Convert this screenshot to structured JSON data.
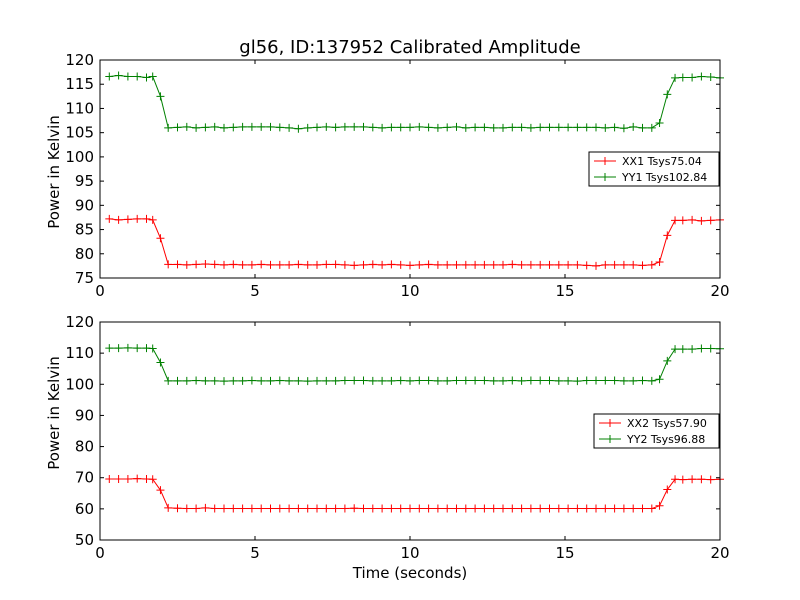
{
  "chart_data": [
    {
      "type": "line",
      "title": "gl56, ID:137952 Calibrated Amplitude",
      "xlabel": "",
      "ylabel": "Power in Kelvin",
      "xlim": [
        0,
        20
      ],
      "ylim": [
        75,
        120
      ],
      "xticks": [
        "0",
        "5",
        "10",
        "15",
        "20"
      ],
      "yticks": [
        "75",
        "80",
        "85",
        "90",
        "95",
        "100",
        "105",
        "110",
        "115",
        "120"
      ],
      "legend_placement": "right",
      "x": [
        0.3,
        0.6,
        0.9,
        1.2,
        1.5,
        1.7,
        1.95,
        2.2,
        2.5,
        2.8,
        3.1,
        3.4,
        3.7,
        4.0,
        4.3,
        4.6,
        4.9,
        5.2,
        5.5,
        5.8,
        6.1,
        6.4,
        6.7,
        7.0,
        7.3,
        7.6,
        7.9,
        8.2,
        8.5,
        8.8,
        9.1,
        9.4,
        9.7,
        10.0,
        10.3,
        10.6,
        10.9,
        11.2,
        11.5,
        11.8,
        12.1,
        12.4,
        12.7,
        13.0,
        13.3,
        13.6,
        13.9,
        14.2,
        14.5,
        14.8,
        15.1,
        15.4,
        15.7,
        16.0,
        16.3,
        16.6,
        16.9,
        17.2,
        17.5,
        17.8,
        18.05,
        18.3,
        18.55,
        18.8,
        19.1,
        19.4,
        19.7,
        20.0
      ],
      "series": [
        {
          "name": "XX1 Tsys75.04",
          "color": "#ff0000",
          "values": [
            87.2,
            87.0,
            87.1,
            87.2,
            87.2,
            87.0,
            83.2,
            77.8,
            77.8,
            77.7,
            77.8,
            77.9,
            77.8,
            77.7,
            77.8,
            77.7,
            77.7,
            77.8,
            77.7,
            77.7,
            77.7,
            77.8,
            77.7,
            77.7,
            77.8,
            77.8,
            77.7,
            77.6,
            77.7,
            77.8,
            77.7,
            77.8,
            77.7,
            77.6,
            77.7,
            77.8,
            77.7,
            77.7,
            77.7,
            77.7,
            77.7,
            77.7,
            77.7,
            77.7,
            77.8,
            77.7,
            77.7,
            77.7,
            77.7,
            77.7,
            77.7,
            77.7,
            77.6,
            77.5,
            77.7,
            77.7,
            77.7,
            77.7,
            77.6,
            77.7,
            78.3,
            83.8,
            86.9,
            86.9,
            87.0,
            86.8,
            86.9,
            87.0
          ]
        },
        {
          "name": "YY1 Tsys102.84",
          "color": "#008000",
          "values": [
            116.6,
            116.8,
            116.6,
            116.6,
            116.4,
            116.6,
            112.5,
            106.0,
            106.1,
            106.2,
            106.0,
            106.1,
            106.2,
            106.0,
            106.1,
            106.2,
            106.2,
            106.2,
            106.2,
            106.1,
            106.0,
            105.8,
            106.0,
            106.1,
            106.2,
            106.1,
            106.2,
            106.2,
            106.2,
            106.1,
            106.0,
            106.1,
            106.1,
            106.1,
            106.2,
            106.1,
            106.0,
            106.1,
            106.2,
            106.0,
            106.1,
            106.1,
            106.0,
            106.0,
            106.1,
            106.1,
            106.0,
            106.1,
            106.1,
            106.1,
            106.1,
            106.1,
            106.1,
            106.1,
            106.0,
            106.1,
            105.9,
            106.2,
            106.0,
            106.0,
            107.0,
            112.9,
            116.3,
            116.4,
            116.4,
            116.6,
            116.5,
            116.3
          ]
        }
      ]
    },
    {
      "type": "line",
      "title": "",
      "xlabel": "Time (seconds)",
      "ylabel": "Power in Kelvin",
      "xlim": [
        0,
        20
      ],
      "ylim": [
        50,
        120
      ],
      "xticks": [
        "0",
        "5",
        "10",
        "15",
        "20"
      ],
      "yticks": [
        "50",
        "60",
        "70",
        "80",
        "90",
        "100",
        "110",
        "120"
      ],
      "legend_placement": "right",
      "x": [
        0.3,
        0.6,
        0.9,
        1.2,
        1.5,
        1.7,
        1.95,
        2.2,
        2.5,
        2.8,
        3.1,
        3.4,
        3.7,
        4.0,
        4.3,
        4.6,
        4.9,
        5.2,
        5.5,
        5.8,
        6.1,
        6.4,
        6.7,
        7.0,
        7.3,
        7.6,
        7.9,
        8.2,
        8.5,
        8.8,
        9.1,
        9.4,
        9.7,
        10.0,
        10.3,
        10.6,
        10.9,
        11.2,
        11.5,
        11.8,
        12.1,
        12.4,
        12.7,
        13.0,
        13.3,
        13.6,
        13.9,
        14.2,
        14.5,
        14.8,
        15.1,
        15.4,
        15.7,
        16.0,
        16.3,
        16.6,
        16.9,
        17.2,
        17.5,
        17.8,
        18.05,
        18.3,
        18.55,
        18.8,
        19.1,
        19.4,
        19.7,
        20.0
      ],
      "series": [
        {
          "name": "XX2 Tsys57.90",
          "color": "#ff0000",
          "values": [
            69.6,
            69.6,
            69.6,
            69.7,
            69.6,
            69.5,
            66.0,
            60.3,
            60.2,
            60.1,
            60.1,
            60.3,
            60.1,
            60.1,
            60.1,
            60.1,
            60.1,
            60.1,
            60.1,
            60.1,
            60.1,
            60.1,
            60.1,
            60.1,
            60.1,
            60.1,
            60.1,
            60.2,
            60.1,
            60.1,
            60.1,
            60.1,
            60.1,
            60.1,
            60.1,
            60.1,
            60.1,
            60.1,
            60.1,
            60.1,
            60.1,
            60.1,
            60.1,
            60.1,
            60.1,
            60.1,
            60.1,
            60.1,
            60.1,
            60.1,
            60.1,
            60.1,
            60.1,
            60.1,
            60.1,
            60.1,
            60.1,
            60.1,
            60.1,
            60.1,
            61.0,
            66.2,
            69.5,
            69.4,
            69.5,
            69.5,
            69.4,
            69.5
          ]
        },
        {
          "name": "YY2 Tsys96.88",
          "color": "#008000",
          "values": [
            111.6,
            111.6,
            111.7,
            111.6,
            111.6,
            111.5,
            107.0,
            101.1,
            101.1,
            101.1,
            101.2,
            101.1,
            101.1,
            101.0,
            101.1,
            101.1,
            101.2,
            101.1,
            101.1,
            101.2,
            101.1,
            101.1,
            101.0,
            101.1,
            101.1,
            101.1,
            101.2,
            101.2,
            101.2,
            101.1,
            101.1,
            101.1,
            101.2,
            101.1,
            101.2,
            101.2,
            101.1,
            101.1,
            101.2,
            101.2,
            101.2,
            101.2,
            101.1,
            101.1,
            101.2,
            101.1,
            101.2,
            101.2,
            101.2,
            101.1,
            101.1,
            101.0,
            101.2,
            101.2,
            101.2,
            101.2,
            101.1,
            101.1,
            101.2,
            101.1,
            101.6,
            107.5,
            111.3,
            111.3,
            111.3,
            111.5,
            111.5,
            111.4
          ]
        }
      ]
    }
  ]
}
